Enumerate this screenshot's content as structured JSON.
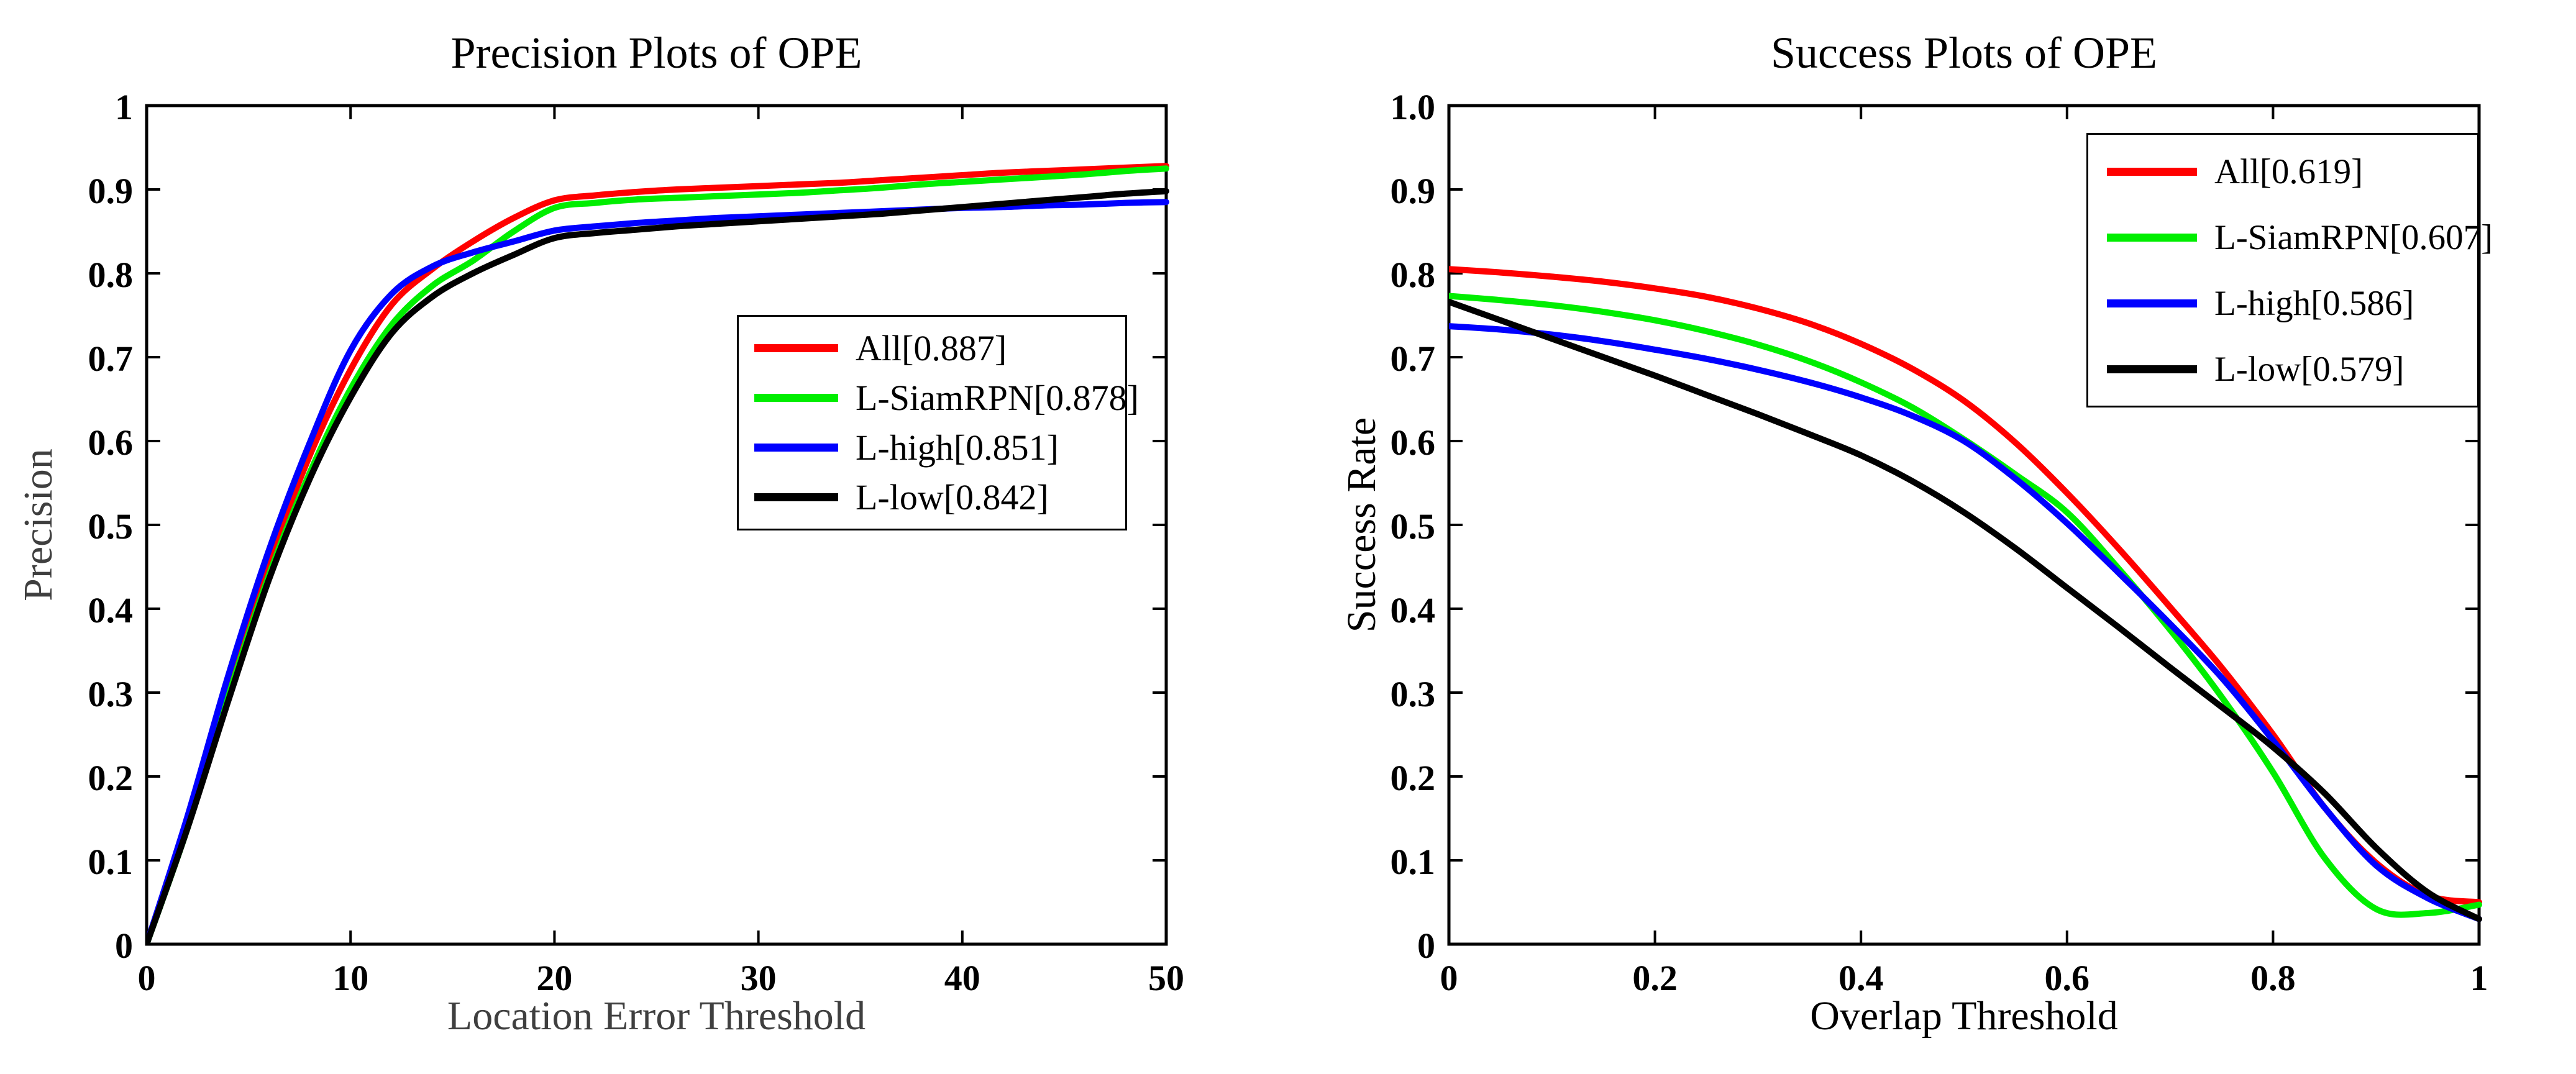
{
  "figure": {
    "background": "#ffffff",
    "description": "OPE evaluation figure with precision and success plots"
  },
  "chart_data": [
    {
      "type": "line",
      "title": "Precision Plots of OPE",
      "xlabel": "Location Error Threshold",
      "ylabel": "Precision",
      "axis_label_color": "#3f3f3f",
      "tick_color": "#000000",
      "xlim": [
        0,
        50
      ],
      "ylim": [
        0,
        1
      ],
      "grid": false,
      "legend_position": "middle-right-inside",
      "xticks": {
        "values": [
          0,
          10,
          20,
          30,
          40,
          50
        ],
        "labels": [
          "0",
          "10",
          "20",
          "30",
          "40",
          "50"
        ]
      },
      "yticks": {
        "values": [
          0,
          0.1,
          0.2,
          0.3,
          0.4,
          0.5,
          0.6,
          0.7,
          0.8,
          0.9,
          1
        ],
        "labels": [
          "0",
          "0.1",
          "0.2",
          "0.3",
          "0.4",
          "0.5",
          "0.6",
          "0.7",
          "0.8",
          "0.9",
          "1"
        ]
      },
      "x": [
        0,
        2,
        4,
        6,
        8,
        10,
        12,
        14,
        16,
        18,
        20,
        22,
        24,
        26,
        28,
        30,
        32,
        34,
        36,
        38,
        40,
        42,
        44,
        46,
        48,
        50
      ],
      "series": [
        {
          "name": "All",
          "score": 0.887,
          "label": "All[0.887]",
          "color": "#ff0000",
          "y": [
            0,
            0.148,
            0.31,
            0.455,
            0.583,
            0.685,
            0.762,
            0.805,
            0.838,
            0.866,
            0.887,
            0.893,
            0.897,
            0.9,
            0.902,
            0.904,
            0.906,
            0.908,
            0.911,
            0.914,
            0.917,
            0.92,
            0.922,
            0.924,
            0.926,
            0.928
          ]
        },
        {
          "name": "L-SiamRPN",
          "score": 0.878,
          "label": "L-SiamRPN[0.878]",
          "color": "#00ee00",
          "y": [
            0,
            0.138,
            0.295,
            0.44,
            0.562,
            0.662,
            0.738,
            0.785,
            0.815,
            0.85,
            0.878,
            0.884,
            0.888,
            0.89,
            0.892,
            0.894,
            0.896,
            0.899,
            0.902,
            0.906,
            0.909,
            0.912,
            0.915,
            0.918,
            0.922,
            0.925
          ]
        },
        {
          "name": "L-high",
          "score": 0.851,
          "label": "L-high[0.851]",
          "color": "#0000ff",
          "y": [
            0,
            0.152,
            0.32,
            0.47,
            0.598,
            0.708,
            0.775,
            0.808,
            0.825,
            0.838,
            0.851,
            0.856,
            0.86,
            0.863,
            0.866,
            0.868,
            0.87,
            0.872,
            0.874,
            0.876,
            0.878,
            0.879,
            0.881,
            0.882,
            0.884,
            0.885
          ]
        },
        {
          "name": "L-low",
          "score": 0.842,
          "label": "L-low[0.842]",
          "color": "#000000",
          "y": [
            0,
            0.138,
            0.29,
            0.435,
            0.555,
            0.652,
            0.728,
            0.772,
            0.8,
            0.822,
            0.842,
            0.848,
            0.852,
            0.856,
            0.859,
            0.862,
            0.865,
            0.868,
            0.871,
            0.875,
            0.879,
            0.883,
            0.887,
            0.891,
            0.895,
            0.898
          ]
        }
      ]
    },
    {
      "type": "line",
      "title": "Success Plots of OPE",
      "xlabel": "Overlap Threshold",
      "ylabel": "Success Rate",
      "axis_label_color": "#000000",
      "tick_color": "#000000",
      "xlim": [
        0,
        1
      ],
      "ylim": [
        0,
        1
      ],
      "grid": false,
      "legend_position": "top-right-inside",
      "xticks": {
        "values": [
          0,
          0.2,
          0.4,
          0.6,
          0.8,
          1
        ],
        "labels": [
          "0",
          "0.2",
          "0.4",
          "0.6",
          "0.8",
          "1"
        ]
      },
      "yticks": {
        "values": [
          0,
          0.1,
          0.2,
          0.3,
          0.4,
          0.5,
          0.6,
          0.7,
          0.8,
          0.9,
          1
        ],
        "labels": [
          "0",
          "0.1",
          "0.2",
          "0.3",
          "0.4",
          "0.5",
          "0.6",
          "0.7",
          "0.8",
          "0.9",
          "1.0"
        ]
      },
      "x": [
        0,
        0.05,
        0.1,
        0.15,
        0.2,
        0.25,
        0.3,
        0.35,
        0.4,
        0.45,
        0.5,
        0.55,
        0.6,
        0.65,
        0.7,
        0.75,
        0.8,
        0.85,
        0.9,
        0.95,
        1
      ],
      "series": [
        {
          "name": "All",
          "score": 0.619,
          "label": "All[0.619]",
          "color": "#ff0000",
          "y": [
            0.805,
            0.801,
            0.796,
            0.79,
            0.782,
            0.772,
            0.758,
            0.74,
            0.716,
            0.686,
            0.648,
            0.598,
            0.538,
            0.472,
            0.402,
            0.33,
            0.25,
            0.163,
            0.097,
            0.058,
            0.05
          ]
        },
        {
          "name": "L-SiamRPN",
          "score": 0.607,
          "label": "L-SiamRPN[0.607]",
          "color": "#00ee00",
          "y": [
            0.773,
            0.768,
            0.762,
            0.754,
            0.744,
            0.731,
            0.715,
            0.695,
            0.67,
            0.64,
            0.602,
            0.56,
            0.515,
            0.448,
            0.375,
            0.295,
            0.205,
            0.103,
            0.042,
            0.037,
            0.047
          ]
        },
        {
          "name": "L-high",
          "score": 0.586,
          "label": "L-high[0.586]",
          "color": "#0000ff",
          "y": [
            0.737,
            0.733,
            0.727,
            0.719,
            0.709,
            0.698,
            0.685,
            0.67,
            0.652,
            0.63,
            0.6,
            0.555,
            0.502,
            0.443,
            0.382,
            0.318,
            0.243,
            0.163,
            0.094,
            0.055,
            0.03
          ]
        },
        {
          "name": "L-low",
          "score": 0.579,
          "label": "L-low[0.579]",
          "color": "#000000",
          "y": [
            0.766,
            0.744,
            0.722,
            0.7,
            0.678,
            0.655,
            0.632,
            0.608,
            0.583,
            0.552,
            0.515,
            0.472,
            0.425,
            0.378,
            0.33,
            0.283,
            0.235,
            0.18,
            0.115,
            0.062,
            0.03
          ]
        }
      ]
    }
  ]
}
